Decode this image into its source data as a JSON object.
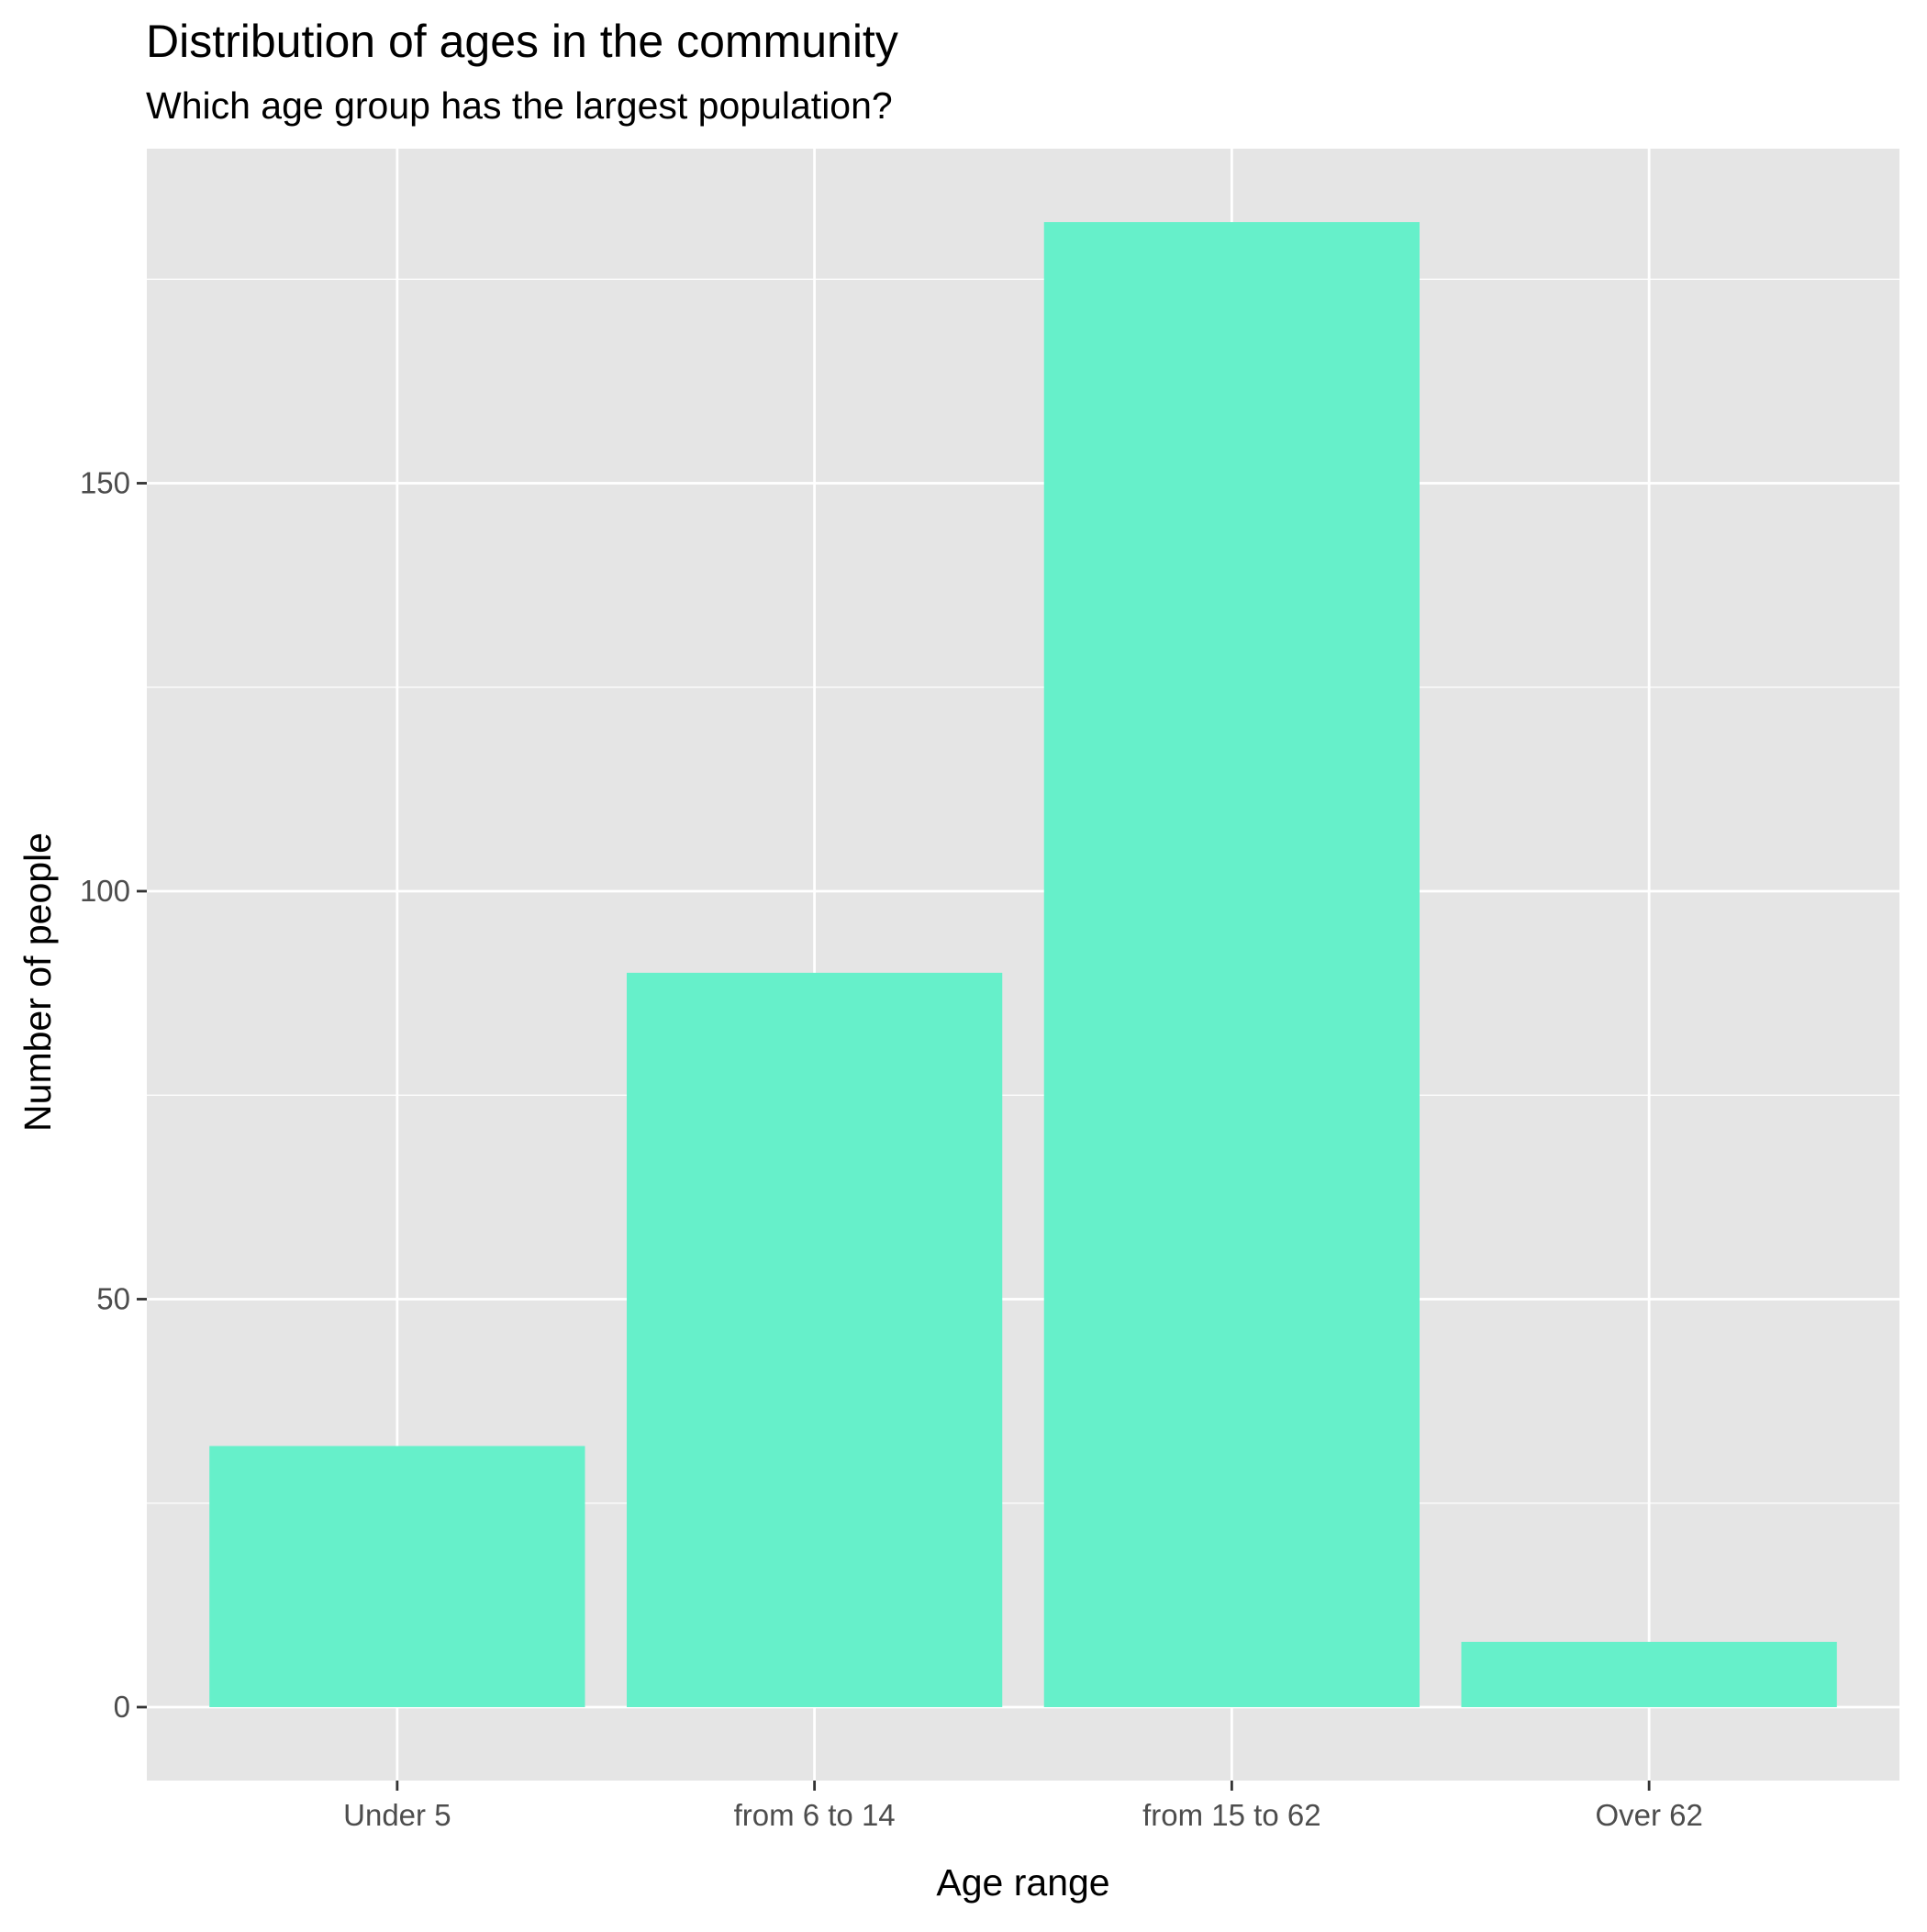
{
  "chart_data": {
    "type": "bar",
    "title": "Distribution of ages in the community",
    "subtitle": "Which age group has the largest population?",
    "xlabel": "Age range",
    "ylabel": "Number of people",
    "categories": [
      "Under 5",
      "from 6 to 14",
      "from 15 to 62",
      "Over 62"
    ],
    "values": [
      32,
      90,
      182,
      8
    ],
    "ylim": [
      -9,
      191
    ],
    "yticks": [
      0,
      50,
      100,
      150
    ],
    "ytick_labels": [
      "0",
      "50",
      "100",
      "150"
    ],
    "minor_yticks": [
      25,
      75,
      125,
      175
    ],
    "grid": true,
    "legend": "none",
    "bar_color": "#66F0CA",
    "panel_background": "#E5E5E5",
    "grid_color": "#FFFFFF"
  }
}
